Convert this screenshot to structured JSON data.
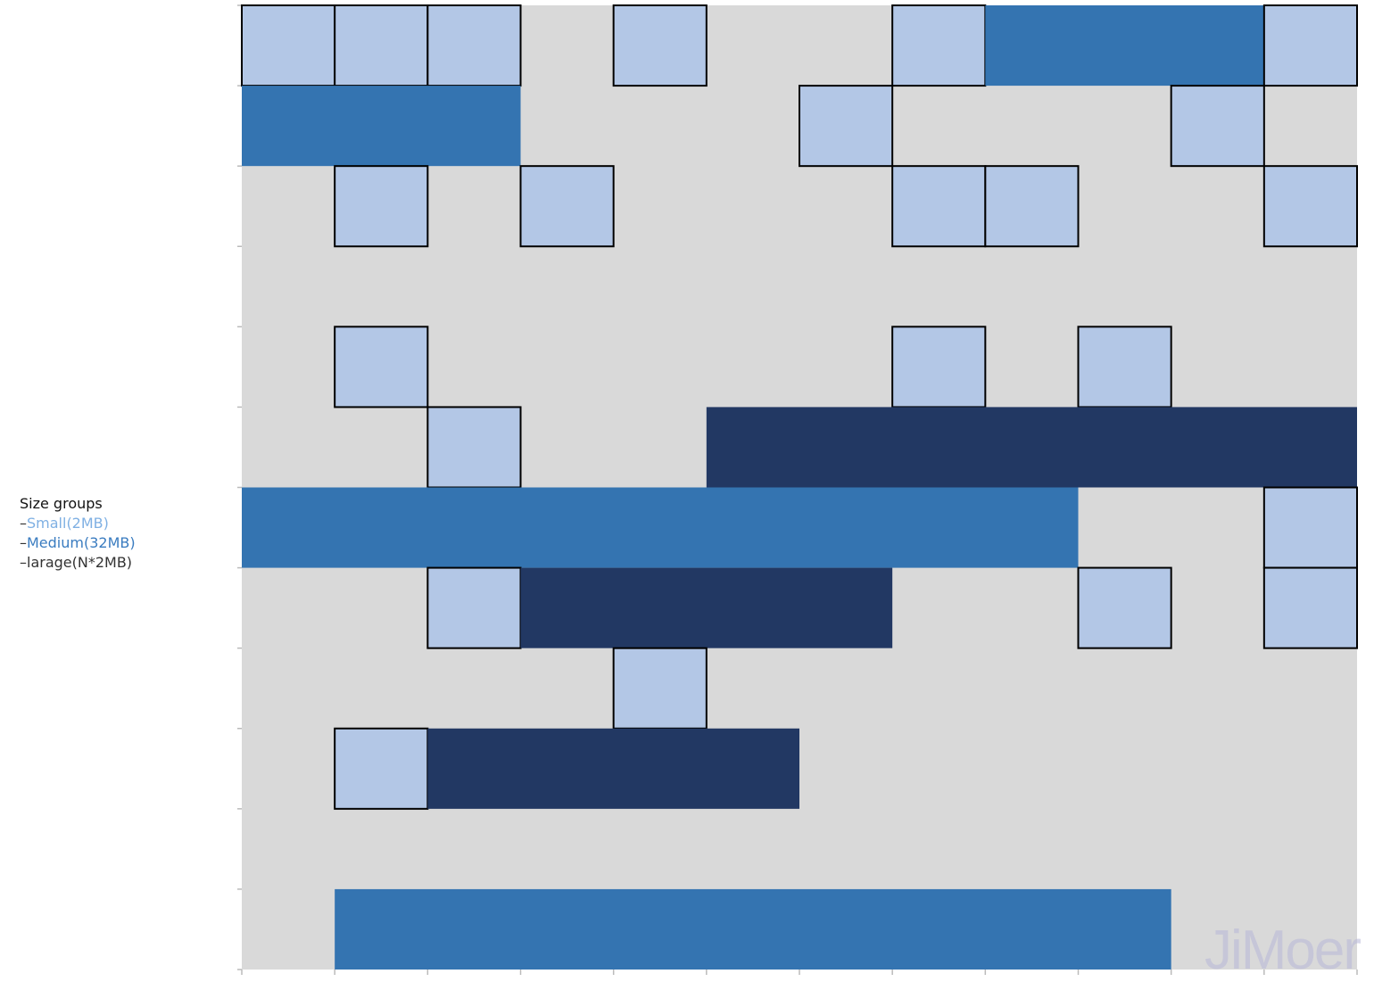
{
  "legend": {
    "title": "Size groups",
    "items": [
      {
        "label": "Small(2MB)",
        "color": "#7fb0e3"
      },
      {
        "label": "Medium(32MB)",
        "color": "#3a7cc0"
      },
      {
        "label": "larage(N*2MB)",
        "color": "#333333"
      }
    ]
  },
  "watermark": "JiMoer",
  "grid": {
    "rows": 12,
    "cols": 12,
    "colors": {
      "empty": "#d9d9d9",
      "small": "#b3c7e6",
      "medium": "#3474b1",
      "large": "#223863"
    },
    "blocks": [
      {
        "row": 0,
        "col": 0,
        "span": 1,
        "type": "small"
      },
      {
        "row": 0,
        "col": 1,
        "span": 1,
        "type": "small"
      },
      {
        "row": 0,
        "col": 2,
        "span": 1,
        "type": "small"
      },
      {
        "row": 0,
        "col": 4,
        "span": 1,
        "type": "small"
      },
      {
        "row": 0,
        "col": 7,
        "span": 1,
        "type": "small"
      },
      {
        "row": 0,
        "col": 8,
        "span": 3,
        "type": "medium"
      },
      {
        "row": 0,
        "col": 11,
        "span": 1,
        "type": "small"
      },
      {
        "row": 1,
        "col": 0,
        "span": 3,
        "type": "medium"
      },
      {
        "row": 1,
        "col": 6,
        "span": 1,
        "type": "small"
      },
      {
        "row": 1,
        "col": 10,
        "span": 1,
        "type": "small"
      },
      {
        "row": 2,
        "col": 1,
        "span": 1,
        "type": "small"
      },
      {
        "row": 2,
        "col": 3,
        "span": 1,
        "type": "small"
      },
      {
        "row": 2,
        "col": 7,
        "span": 1,
        "type": "small"
      },
      {
        "row": 2,
        "col": 8,
        "span": 1,
        "type": "small"
      },
      {
        "row": 2,
        "col": 11,
        "span": 1,
        "type": "small"
      },
      {
        "row": 4,
        "col": 1,
        "span": 1,
        "type": "small"
      },
      {
        "row": 4,
        "col": 7,
        "span": 1,
        "type": "small"
      },
      {
        "row": 4,
        "col": 9,
        "span": 1,
        "type": "small"
      },
      {
        "row": 5,
        "col": 2,
        "span": 1,
        "type": "small"
      },
      {
        "row": 5,
        "col": 5,
        "span": 7,
        "type": "large"
      },
      {
        "row": 6,
        "col": 0,
        "span": 9,
        "type": "medium"
      },
      {
        "row": 6,
        "col": 11,
        "span": 1,
        "type": "small"
      },
      {
        "row": 7,
        "col": 2,
        "span": 1,
        "type": "small"
      },
      {
        "row": 7,
        "col": 3,
        "span": 4,
        "type": "large"
      },
      {
        "row": 7,
        "col": 9,
        "span": 1,
        "type": "small"
      },
      {
        "row": 7,
        "col": 11,
        "span": 1,
        "type": "small"
      },
      {
        "row": 8,
        "col": 4,
        "span": 1,
        "type": "small"
      },
      {
        "row": 9,
        "col": 1,
        "span": 1,
        "type": "small"
      },
      {
        "row": 9,
        "col": 2,
        "span": 4,
        "type": "large"
      },
      {
        "row": 11,
        "col": 1,
        "span": 9,
        "type": "medium"
      }
    ]
  }
}
